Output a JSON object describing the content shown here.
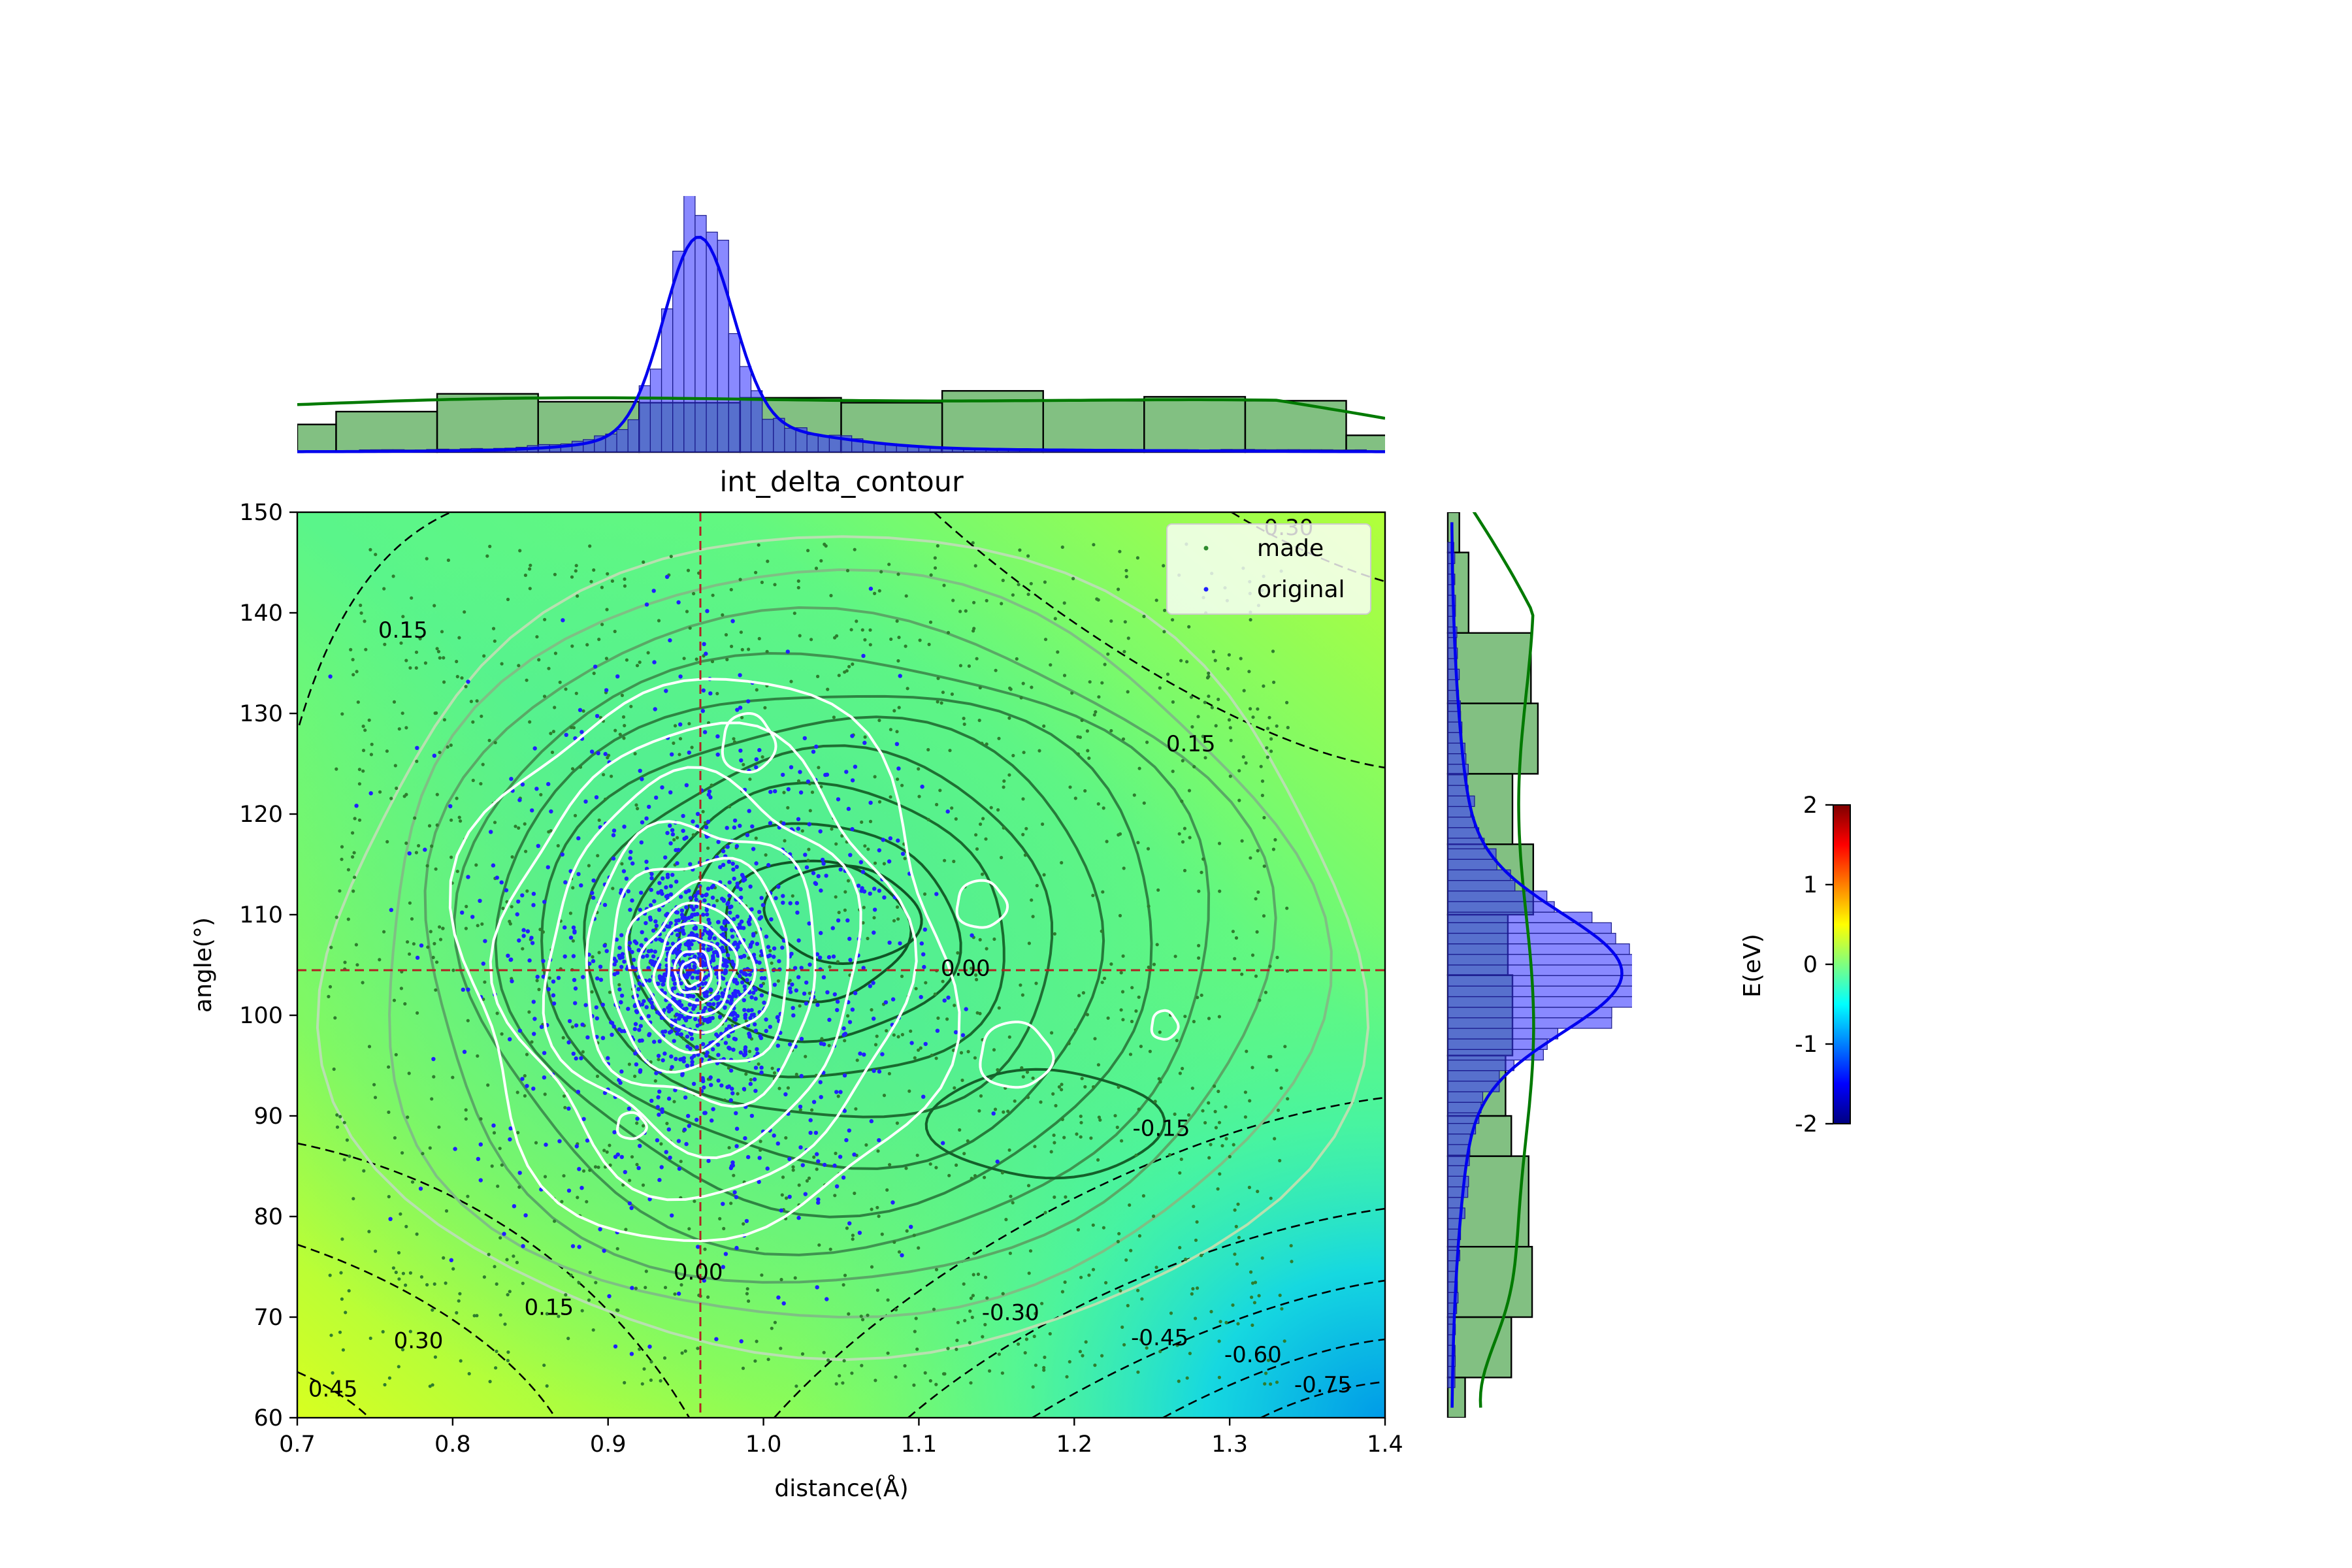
{
  "chart_data": {
    "type": "scatter",
    "title": "int_delta_contour",
    "xlabel": "distance(Å)",
    "ylabel": "angle(°)",
    "xlim": [
      0.7,
      1.4
    ],
    "ylim": [
      60,
      150
    ],
    "x_ticks": [
      0.7,
      0.8,
      0.9,
      1.0,
      1.1,
      1.2,
      1.3,
      1.4
    ],
    "y_ticks": [
      60,
      70,
      80,
      90,
      100,
      110,
      120,
      130,
      140,
      150
    ],
    "grid": false,
    "legend_placement": "upper right",
    "legend": [
      {
        "name": "made",
        "color": "#2e8b2e"
      },
      {
        "name": "original",
        "color": "#1f1fff"
      }
    ],
    "crosshair": {
      "x": 0.958,
      "y": 104.2,
      "color": "#b22222"
    },
    "background": {
      "colormap": "jet",
      "label": "E(eV)",
      "vmin": -2,
      "vmax": 2,
      "ticks": [
        2,
        1,
        0,
        -1,
        -2
      ]
    },
    "contour_labels": [
      {
        "text": "0.15",
        "x": 0.768,
        "y": 138.3
      },
      {
        "text": "0.15",
        "x": 1.275,
        "y": 127.0
      },
      {
        "text": "0.00",
        "x": 1.13,
        "y": 104.7
      },
      {
        "text": "0.00",
        "x": 0.958,
        "y": 74.5
      },
      {
        "text": "-0.15",
        "x": 1.256,
        "y": 88.8
      },
      {
        "text": "-0.30",
        "x": 1.159,
        "y": 70.5
      },
      {
        "text": "-0.45",
        "x": 1.255,
        "y": 68.0
      },
      {
        "text": "-0.60",
        "x": 1.315,
        "y": 66.3
      },
      {
        "text": "-0.75",
        "x": 1.36,
        "y": 63.3
      },
      {
        "text": "0.15",
        "x": 0.862,
        "y": 71.0
      },
      {
        "text": "0.30",
        "x": 0.778,
        "y": 67.7
      },
      {
        "text": "0.45",
        "x": 0.723,
        "y": 62.9
      },
      {
        "text": "0.30",
        "x": 1.338,
        "y": 148.5
      }
    ],
    "marginal_x": {
      "made_bins": [
        0.7,
        0.725,
        0.79,
        0.855,
        0.92,
        0.985,
        1.05,
        1.115,
        1.18,
        1.245,
        1.31,
        1.375,
        1.44
      ],
      "made_counts": [
        0.28,
        0.41,
        0.59,
        0.51,
        0.5,
        0.55,
        0.5,
        0.62,
        0.52,
        0.56,
        0.52,
        0.17
      ],
      "original_peak": 0.958,
      "original_peak_height": 1.0
    },
    "marginal_y": {
      "made_bins": [
        60,
        64,
        70,
        77,
        86,
        90,
        96,
        104,
        110,
        117,
        124,
        131,
        138,
        146,
        150
      ],
      "made_counts": [
        0.15,
        0.55,
        0.73,
        0.7,
        0.55,
        0.5,
        0.56,
        0.52,
        0.74,
        0.56,
        0.78,
        0.72,
        0.18,
        0.1
      ],
      "original_peak": 104.2,
      "original_peak_width": 1.0
    }
  }
}
